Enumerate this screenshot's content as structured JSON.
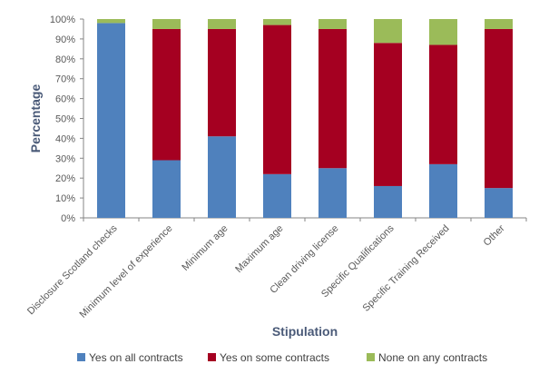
{
  "chart_data": {
    "type": "bar",
    "stacked": true,
    "percent": true,
    "categories": [
      "Disclosure Scotland checks",
      "Minimum level of experience",
      "Minimum age",
      "Maximum age",
      "Clean driving license",
      "Specific Qualifications",
      "Specific Training Received",
      "Other"
    ],
    "series": [
      {
        "name": "Yes on all contracts",
        "color": "#4f81bd",
        "values": [
          98,
          29,
          41,
          22,
          25,
          16,
          27,
          15
        ]
      },
      {
        "name": "Yes on some contracts",
        "color": "#a50021",
        "values": [
          0,
          66,
          54,
          75,
          70,
          72,
          60,
          80
        ]
      },
      {
        "name": "None on any contracts",
        "color": "#9bbb59",
        "values": [
          2,
          5,
          5,
          3,
          5,
          12,
          13,
          5
        ]
      }
    ],
    "xlabel": "Stipulation",
    "ylabel": "Percentage",
    "ylim": [
      0,
      100
    ],
    "yticks": [
      "0%",
      "10%",
      "20%",
      "30%",
      "40%",
      "50%",
      "60%",
      "70%",
      "80%",
      "90%",
      "100%"
    ],
    "grid": false,
    "legend": "bottom"
  }
}
